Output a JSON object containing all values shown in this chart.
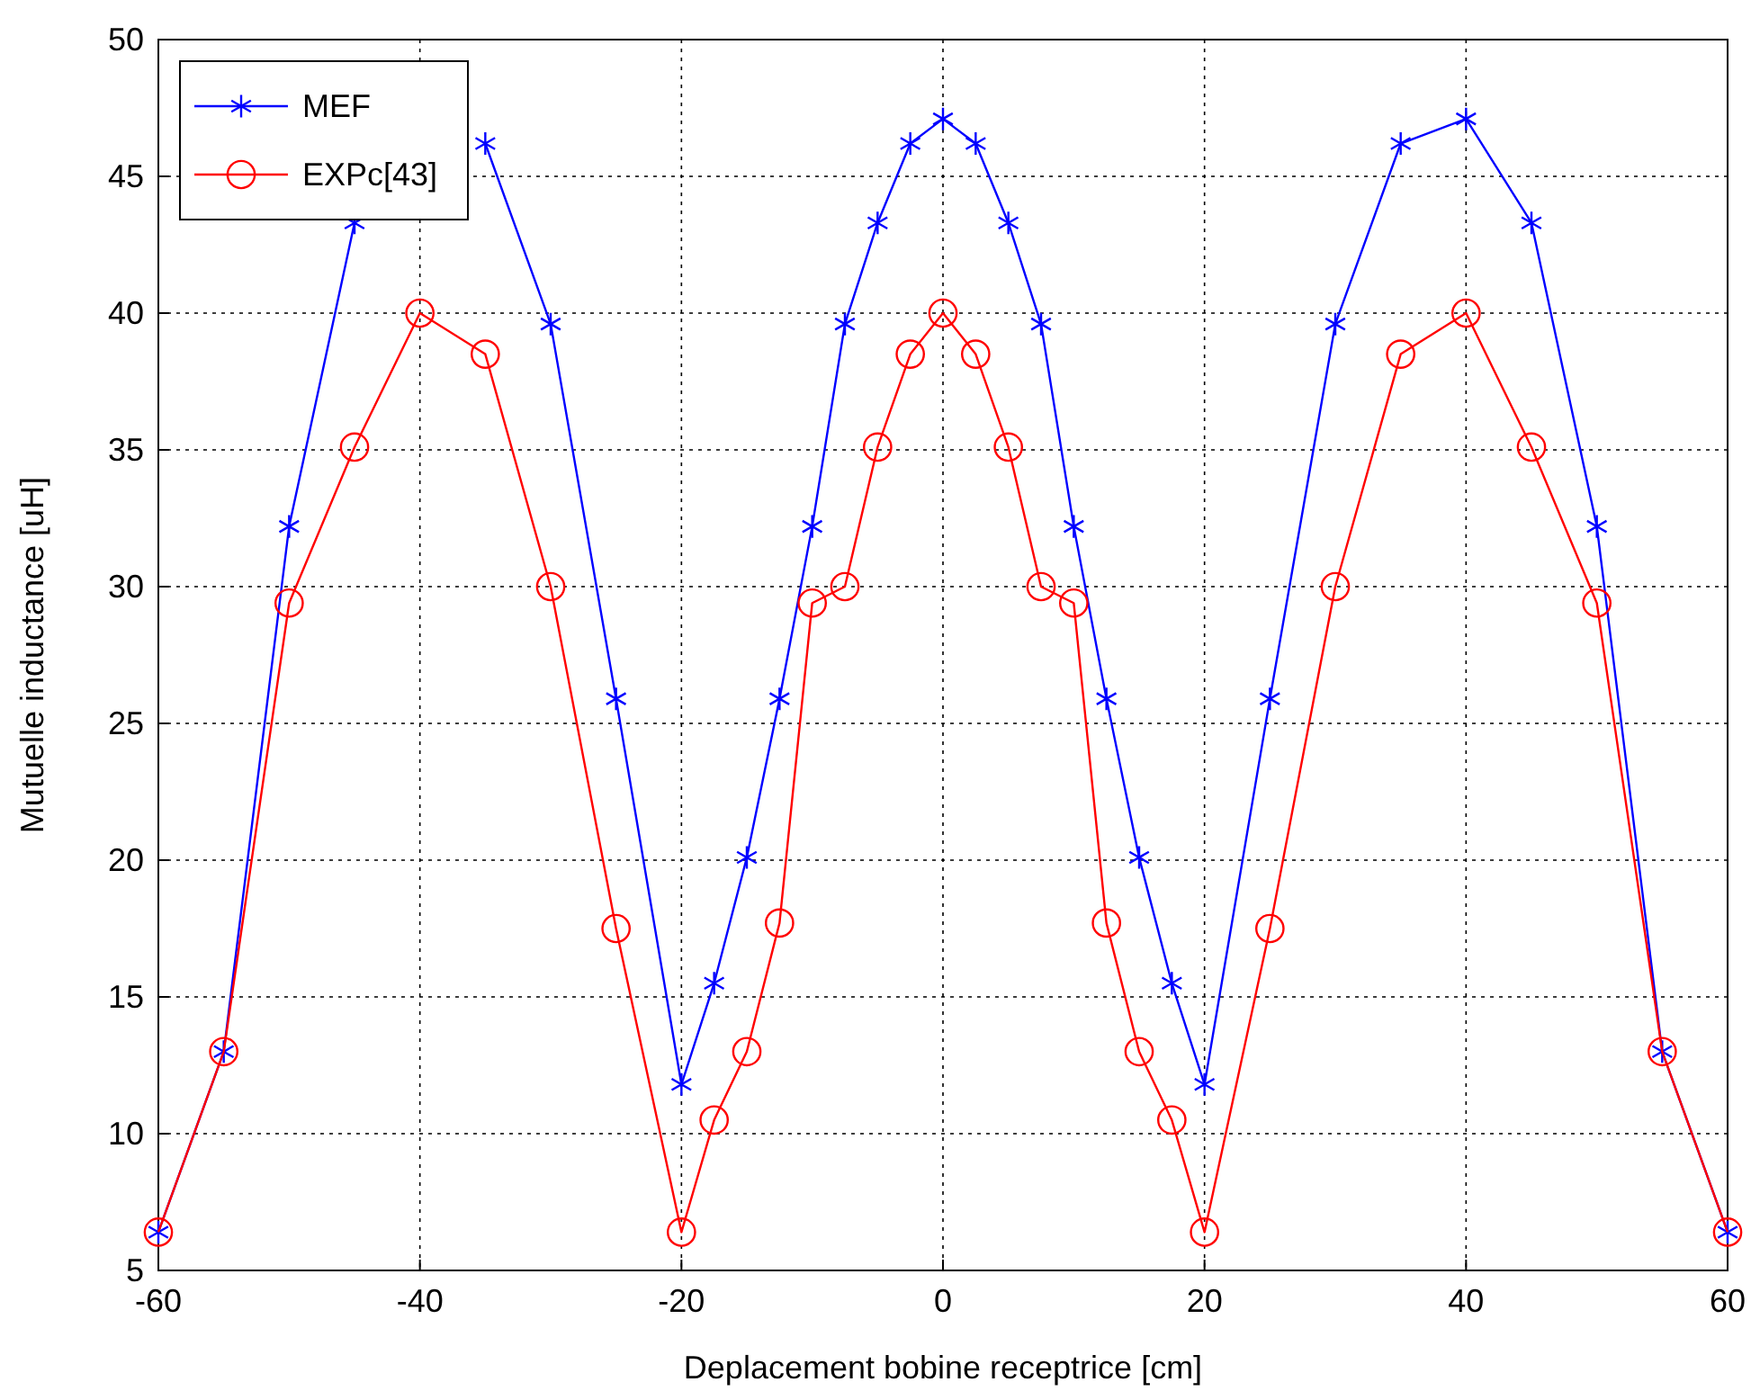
{
  "chart_data": {
    "type": "line",
    "xlabel": "Deplacement bobine receptrice [cm]",
    "ylabel": "Mutuelle inductance [uH]",
    "x": [
      -60,
      -55,
      -50,
      -45,
      -40,
      -35,
      -30,
      -25,
      -20,
      -17.5,
      -15,
      -12.5,
      -10,
      -7.5,
      -5,
      -2.5,
      0,
      2.5,
      5,
      7.5,
      10,
      12.5,
      15,
      17.5,
      20,
      25,
      30,
      35,
      40,
      45,
      50,
      55,
      60
    ],
    "series": [
      {
        "name": "MEF",
        "color": "#0000ff",
        "marker": "cross",
        "values": [
          6.4,
          13,
          32.2,
          43.3,
          null,
          46.2,
          39.6,
          25.9,
          11.8,
          15.5,
          20.1,
          25.9,
          32.2,
          39.6,
          43.3,
          46.2,
          47.1,
          46.2,
          43.3,
          39.6,
          32.2,
          25.9,
          20.1,
          15.5,
          11.8,
          25.9,
          39.6,
          46.2,
          47.1,
          43.3,
          32.2,
          13,
          6.4
        ]
      },
      {
        "name": "EXPc[43]",
        "color": "#ff0000",
        "marker": "circle",
        "values": [
          6.4,
          13,
          29.4,
          35.1,
          40,
          38.5,
          30,
          17.5,
          6.4,
          10.5,
          13,
          17.7,
          29.4,
          30,
          35.1,
          38.5,
          40,
          38.5,
          35.1,
          30,
          29.4,
          17.7,
          13,
          10.5,
          6.4,
          17.5,
          30,
          38.5,
          40,
          35.1,
          29.4,
          13,
          6.4
        ]
      }
    ],
    "xlim": [
      -60,
      60
    ],
    "xticks": [
      -60,
      -40,
      -20,
      0,
      20,
      40,
      60
    ],
    "ylim": [
      5,
      50
    ],
    "yticks": [
      5,
      10,
      15,
      20,
      25,
      30,
      35,
      40,
      45,
      50
    ],
    "grid": true,
    "legend": "top left",
    "line_style": "solid"
  }
}
